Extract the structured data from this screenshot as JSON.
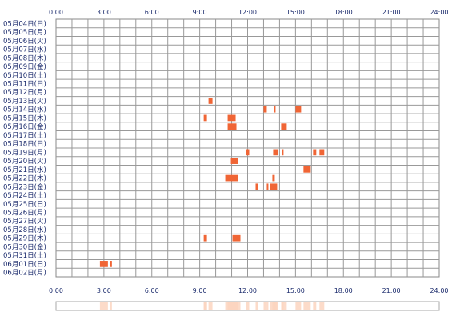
{
  "chart_data": {
    "type": "heatmap",
    "x_ticks": [
      "0:00",
      "3:00",
      "6:00",
      "9:00",
      "12:00",
      "15:00",
      "18:00",
      "21:00",
      "24:00"
    ],
    "x_range_hours": [
      0,
      24
    ],
    "grid": true,
    "rows": [
      "05月04日(日)",
      "05月05日(月)",
      "05月06日(火)",
      "05月07日(水)",
      "05月08日(木)",
      "05月09日(金)",
      "05月10日(土)",
      "05月11日(日)",
      "05月12日(月)",
      "05月13日(火)",
      "05月14日(水)",
      "05月15日(木)",
      "05月16日(金)",
      "05月17日(土)",
      "05月18日(日)",
      "05月19日(月)",
      "05月20日(火)",
      "05月21日(水)",
      "05月22日(木)",
      "05月23日(金)",
      "05月24日(土)",
      "05月25日(日)",
      "05月26日(月)",
      "05月27日(火)",
      "05月28日(水)",
      "05月29日(木)",
      "05月30日(金)",
      "05月31日(土)",
      "06月01日(日)",
      "06月02日(月)"
    ],
    "activity_color": "#f06535",
    "summary_color": "#fbd5c0",
    "blocks": [
      {
        "row": 9,
        "start": 9.55,
        "end": 9.8
      },
      {
        "row": 10,
        "start": 13.0,
        "end": 13.2
      },
      {
        "row": 10,
        "start": 13.65,
        "end": 13.75
      },
      {
        "row": 10,
        "start": 15.0,
        "end": 15.35
      },
      {
        "row": 11,
        "start": 9.25,
        "end": 9.45
      },
      {
        "row": 11,
        "start": 10.75,
        "end": 11.25
      },
      {
        "row": 12,
        "start": 10.75,
        "end": 11.3
      },
      {
        "row": 12,
        "start": 14.1,
        "end": 14.45
      },
      {
        "row": 15,
        "start": 11.9,
        "end": 12.1
      },
      {
        "row": 15,
        "start": 13.6,
        "end": 13.9
      },
      {
        "row": 15,
        "start": 14.15,
        "end": 14.25
      },
      {
        "row": 15,
        "start": 16.1,
        "end": 16.3
      },
      {
        "row": 15,
        "start": 16.5,
        "end": 16.8
      },
      {
        "row": 16,
        "start": 10.95,
        "end": 11.4
      },
      {
        "row": 17,
        "start": 15.5,
        "end": 15.95
      },
      {
        "row": 18,
        "start": 10.6,
        "end": 10.9
      },
      {
        "row": 18,
        "start": 10.9,
        "end": 11.4
      },
      {
        "row": 19,
        "start": 12.5,
        "end": 12.65
      },
      {
        "row": 19,
        "start": 13.2,
        "end": 13.3
      },
      {
        "row": 19,
        "start": 13.4,
        "end": 13.85
      },
      {
        "row": 18,
        "start": 13.55,
        "end": 13.7
      },
      {
        "row": 25,
        "start": 9.25,
        "end": 9.45
      },
      {
        "row": 25,
        "start": 11.05,
        "end": 11.55
      },
      {
        "row": 28,
        "start": 2.75,
        "end": 3.25
      },
      {
        "row": 28,
        "start": 3.4,
        "end": 3.5
      }
    ]
  }
}
